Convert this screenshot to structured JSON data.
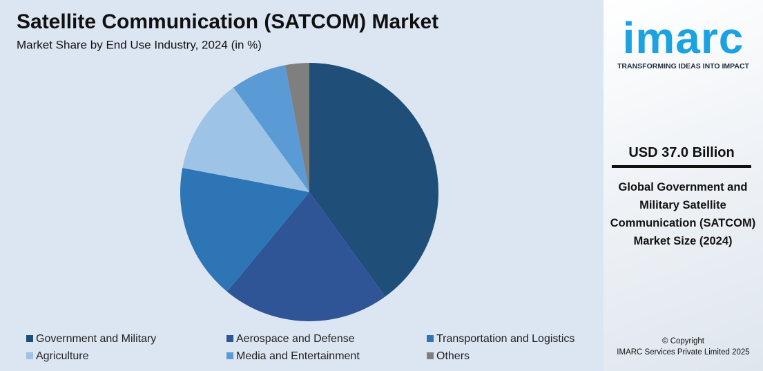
{
  "chart_data": {
    "type": "pie",
    "title": "Satellite Communication (SATCOM) Market",
    "subtitle": "Market Share by End Use Industry, 2024 (in %)",
    "categories": [
      "Government and Military",
      "Aerospace and Defense",
      "Transportation and Logistics",
      "Agriculture",
      "Media and Entertainment",
      "Others"
    ],
    "values": [
      40,
      21,
      17,
      12,
      7,
      3
    ],
    "colors": [
      "#1f4e79",
      "#2f5597",
      "#2e75b6",
      "#9dc3e6",
      "#5b9bd5",
      "#7f7f7f"
    ]
  },
  "sidebar": {
    "logo": "imarc",
    "tagline": "TRANSFORMING IDEAS INTO IMPACT",
    "market_size": "USD 37.0 Billion",
    "description": "Global Government and Military Satellite Communication (SATCOM) Market Size (2024)",
    "copyright": "© Copyright",
    "company": "IMARC Services Private Limited 2025"
  }
}
